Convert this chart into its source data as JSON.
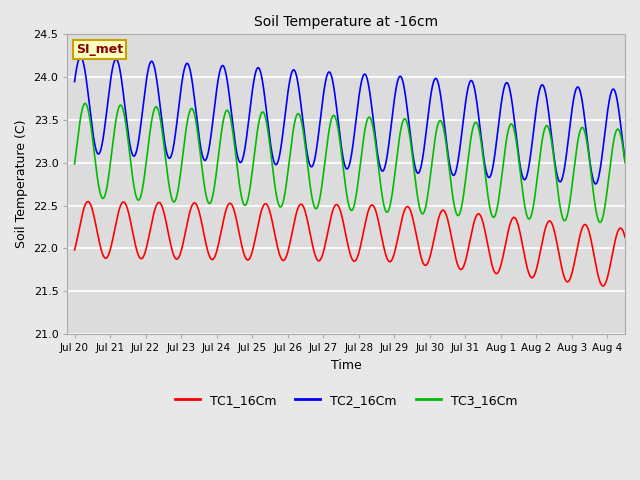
{
  "title": "Soil Temperature at -16cm",
  "xlabel": "Time",
  "ylabel": "Soil Temperature (C)",
  "ylim": [
    21.0,
    24.5
  ],
  "xlim_days": [
    -0.2,
    15.5
  ],
  "annotation_text": "SI_met",
  "annotation_color": "#8B0000",
  "annotation_bg": "#FFFFC0",
  "annotation_border": "#C8A000",
  "legend_labels": [
    "TC1_16Cm",
    "TC2_16Cm",
    "TC3_16Cm"
  ],
  "line_colors": [
    "#FF0000",
    "#0000FF",
    "#00BB00"
  ],
  "bg_color": "#E8E8E8",
  "plot_bg": "#DCDCDC",
  "grid_color": "#FFFFFF",
  "tick_labels": [
    "Jul 20",
    "Jul 21",
    "Jul 22",
    "Jul 23",
    "Jul 24",
    "Jul 25",
    "Jul 26",
    "Jul 27",
    "Jul 28",
    "Jul 29",
    "Jul 30",
    "Jul 31",
    "Aug 1",
    "Aug 2",
    "Aug 3",
    "Aug 4"
  ],
  "yticks": [
    21.0,
    21.5,
    22.0,
    22.5,
    23.0,
    23.5,
    24.0,
    24.5
  ]
}
